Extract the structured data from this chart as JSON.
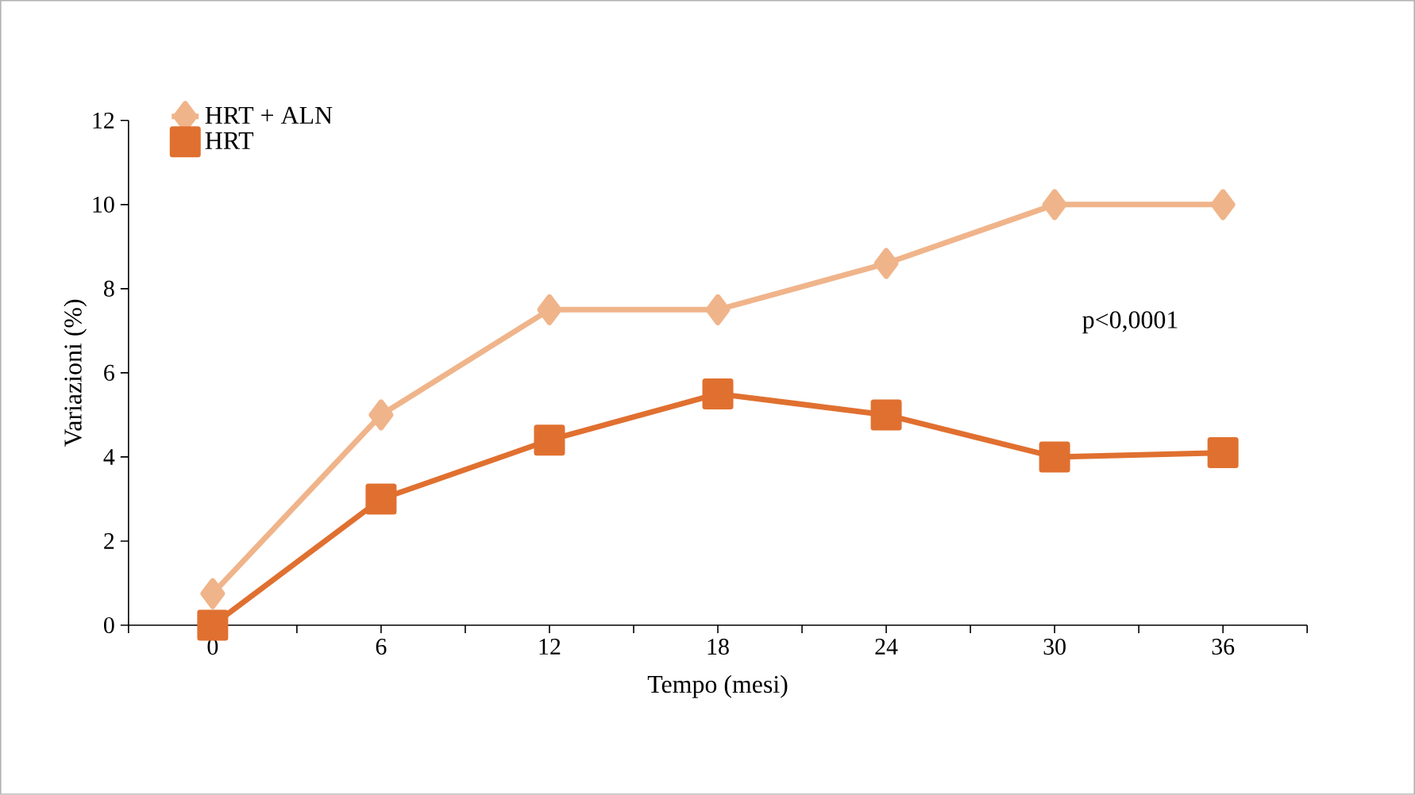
{
  "chart_data": {
    "type": "line",
    "xlabel": "Tempo (mesi)",
    "ylabel": "Variazioni (%)",
    "x": [
      0,
      6,
      12,
      18,
      24,
      30,
      36
    ],
    "series": [
      {
        "name": "HRT + ALN",
        "color": "#f0b48a",
        "marker": "diamond",
        "values": [
          0.75,
          5,
          7.5,
          7.5,
          8.6,
          10,
          10
        ]
      },
      {
        "name": "HRT",
        "color": "#e07030",
        "marker": "square",
        "values": [
          0,
          3,
          4.4,
          5.5,
          5,
          4,
          4.1
        ]
      }
    ],
    "xlim": [
      -3,
      39
    ],
    "xticks": [
      {
        "value": -3,
        "label": null
      },
      0,
      {
        "value": 3,
        "label": null
      },
      6,
      {
        "value": 9,
        "label": null
      },
      12,
      {
        "value": 15,
        "label": null
      },
      18,
      {
        "value": 21,
        "label": null
      },
      24,
      {
        "value": 27,
        "label": null
      },
      30,
      {
        "value": 33,
        "label": null
      },
      36,
      {
        "value": 39,
        "label": null
      }
    ],
    "ylim": [
      0,
      12
    ],
    "yticks": [
      0,
      2,
      4,
      6,
      8,
      10,
      12
    ],
    "grid": false,
    "legend": "top left",
    "line_style": "solid",
    "annotations": [
      "p<0,0001"
    ]
  }
}
